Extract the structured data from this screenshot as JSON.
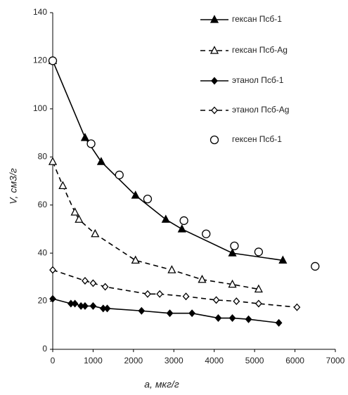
{
  "chart_data": {
    "type": "scatter",
    "xlabel": "a, мкг/г",
    "ylabel": "V, см3/г",
    "xlim": [
      0,
      7000
    ],
    "xticks": [
      0,
      1000,
      2000,
      3000,
      4000,
      5000,
      6000,
      7000
    ],
    "ylim": [
      0,
      140
    ],
    "yticks": [
      0,
      20,
      40,
      60,
      80,
      100,
      120,
      140
    ],
    "grid": false,
    "legend": "upper right",
    "series": [
      {
        "name": "гексан Псб-1",
        "color": "#000000",
        "marker": "triangle",
        "filled": true,
        "line": "solid",
        "x": [
          0,
          800,
          1200,
          2050,
          2800,
          3200,
          4450,
          5700
        ],
        "values": [
          120,
          88,
          78,
          64,
          54,
          50,
          40,
          37
        ]
      },
      {
        "name": "гексан Псб-Ag",
        "color": "#000000",
        "marker": "triangle",
        "filled": false,
        "line": "dashed",
        "x": [
          0,
          250,
          550,
          650,
          1050,
          2050,
          2950,
          3700,
          4450,
          5100
        ],
        "values": [
          78,
          68,
          57,
          54,
          48,
          37,
          33,
          29,
          27,
          25
        ]
      },
      {
        "name": "этанол Псб-1",
        "color": "#000000",
        "marker": "diamond",
        "filled": true,
        "line": "solid",
        "x": [
          0,
          450,
          550,
          700,
          800,
          1000,
          1250,
          1350,
          2200,
          2900,
          3450,
          4100,
          4450,
          4850,
          5600
        ],
        "values": [
          21,
          19,
          19,
          18,
          18,
          18,
          17,
          17,
          16,
          15,
          15,
          13,
          13,
          12.5,
          11
        ]
      },
      {
        "name": "этанол Псб-Ag",
        "color": "#000000",
        "marker": "diamond",
        "filled": false,
        "line": "dashed",
        "x": [
          0,
          800,
          1000,
          1300,
          2350,
          2650,
          3300,
          4050,
          4550,
          5100,
          6050
        ],
        "values": [
          33,
          28.5,
          27.5,
          26,
          23,
          23,
          22,
          20.5,
          20,
          19,
          17.5
        ]
      },
      {
        "name": "гексен Псб-1",
        "color": "#000000",
        "marker": "circle",
        "filled": false,
        "line": "none",
        "x": [
          0,
          950,
          1650,
          2350,
          3250,
          3800,
          4500,
          5100,
          6500
        ],
        "values": [
          120,
          85.5,
          72.5,
          62.5,
          53.5,
          48,
          43,
          40.5,
          34.5
        ]
      }
    ]
  }
}
